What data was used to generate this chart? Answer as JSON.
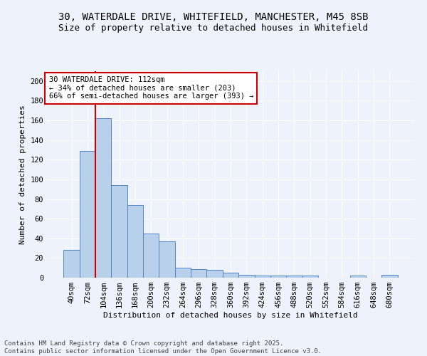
{
  "title_line1": "30, WATERDALE DRIVE, WHITEFIELD, MANCHESTER, M45 8SB",
  "title_line2": "Size of property relative to detached houses in Whitefield",
  "xlabel": "Distribution of detached houses by size in Whitefield",
  "ylabel": "Number of detached properties",
  "bar_color": "#b8d0ea",
  "bar_edge_color": "#5585c5",
  "categories": [
    "40sqm",
    "72sqm",
    "104sqm",
    "136sqm",
    "168sqm",
    "200sqm",
    "232sqm",
    "264sqm",
    "296sqm",
    "328sqm",
    "360sqm",
    "392sqm",
    "424sqm",
    "456sqm",
    "488sqm",
    "520sqm",
    "552sqm",
    "584sqm",
    "616sqm",
    "648sqm",
    "680sqm"
  ],
  "values": [
    28,
    129,
    162,
    94,
    74,
    45,
    37,
    10,
    9,
    8,
    5,
    3,
    2,
    2,
    2,
    2,
    0,
    0,
    2,
    0,
    3
  ],
  "ylim": [
    0,
    210
  ],
  "yticks": [
    0,
    20,
    40,
    60,
    80,
    100,
    120,
    140,
    160,
    180,
    200
  ],
  "vline_index": 2,
  "vline_color": "#cc0000",
  "annotation_text": "30 WATERDALE DRIVE: 112sqm\n← 34% of detached houses are smaller (203)\n66% of semi-detached houses are larger (393) →",
  "annotation_box_color": "#ffffff",
  "annotation_border_color": "#cc0000",
  "footer_text": "Contains HM Land Registry data © Crown copyright and database right 2025.\nContains public sector information licensed under the Open Government Licence v3.0.",
  "background_color": "#eef2fb",
  "grid_color": "#ffffff",
  "title_fontsize": 10,
  "axis_label_fontsize": 8,
  "tick_fontsize": 7.5,
  "annotation_fontsize": 7.5,
  "footer_fontsize": 6.5
}
